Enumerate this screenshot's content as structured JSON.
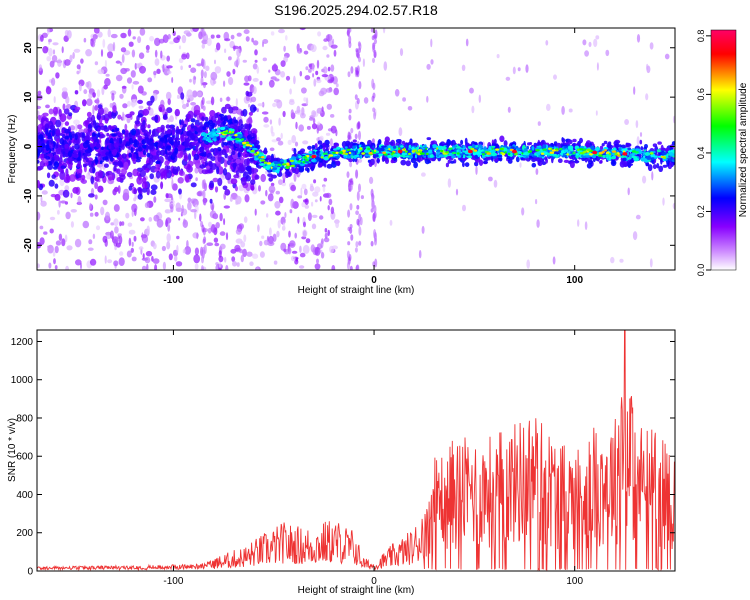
{
  "title": "S196.2025.294.02.57.R18",
  "chart_data": [
    {
      "type": "heatmap",
      "name": "spectrogram",
      "xlabel": "Height of straight line (km)",
      "ylabel": "Frequency (Hz)",
      "xlim": [
        -168,
        150
      ],
      "ylim": [
        -25,
        24
      ],
      "xticks": [
        -100,
        0,
        100
      ],
      "yticks": [
        -20,
        -10,
        0,
        10,
        20
      ],
      "xtick_labels": [
        "-100",
        "0",
        "100"
      ],
      "ytick_labels": [
        "-20",
        "-10",
        "0",
        "10",
        "20"
      ],
      "colorbar": {
        "label": "Normalized spectral amplitude",
        "range": [
          0,
          0.82
        ],
        "ticks": [
          0,
          0.2,
          0.4,
          0.6,
          0.8
        ],
        "tick_labels": [
          "0.0",
          "0.2",
          "0.4",
          "0.6",
          "0.8"
        ],
        "colormap": [
          "#ffffff",
          "#8800ff",
          "#0000ff",
          "#00ffff",
          "#00ff00",
          "#ffff00",
          "#ff0000",
          "#ff0066"
        ]
      },
      "ridge": [
        {
          "x": -168,
          "f": 0
        },
        {
          "x": -120,
          "f": 0
        },
        {
          "x": -82,
          "f": 2
        },
        {
          "x": -75,
          "f": 3
        },
        {
          "x": -68,
          "f": 2
        },
        {
          "x": -60,
          "f": -1
        },
        {
          "x": -52,
          "f": -4
        },
        {
          "x": -45,
          "f": -4
        },
        {
          "x": -30,
          "f": -2
        },
        {
          "x": -10,
          "f": -1
        },
        {
          "x": 0,
          "f": -1
        },
        {
          "x": 50,
          "f": -1
        },
        {
          "x": 100,
          "f": -1
        },
        {
          "x": 150,
          "f": -2
        }
      ]
    },
    {
      "type": "line",
      "name": "snr",
      "xlabel": "Height of straight line (km)",
      "ylabel": "SNR (10 * v/v)",
      "xlim": [
        -168,
        150
      ],
      "ylim": [
        0,
        1260
      ],
      "xticks": [
        -100,
        0,
        100
      ],
      "yticks": [
        0,
        200,
        400,
        600,
        800,
        1000,
        1200
      ],
      "xtick_labels": [
        "-100",
        "0",
        "100"
      ],
      "ytick_labels": [
        "0",
        "200",
        "400",
        "600",
        "800",
        "1000",
        "1200"
      ],
      "color": "#ee3333",
      "envelope": [
        {
          "x": -168,
          "y": 30
        },
        {
          "x": -120,
          "y": 35
        },
        {
          "x": -90,
          "y": 45
        },
        {
          "x": -80,
          "y": 70
        },
        {
          "x": -65,
          "y": 130
        },
        {
          "x": -55,
          "y": 200
        },
        {
          "x": -45,
          "y": 260
        },
        {
          "x": -35,
          "y": 230
        },
        {
          "x": -20,
          "y": 280
        },
        {
          "x": -10,
          "y": 220
        },
        {
          "x": -5,
          "y": 70
        },
        {
          "x": 0,
          "y": 50
        },
        {
          "x": 10,
          "y": 150
        },
        {
          "x": 20,
          "y": 230
        },
        {
          "x": 25,
          "y": 400
        },
        {
          "x": 30,
          "y": 600
        },
        {
          "x": 40,
          "y": 700
        },
        {
          "x": 55,
          "y": 700
        },
        {
          "x": 70,
          "y": 780
        },
        {
          "x": 80,
          "y": 850
        },
        {
          "x": 90,
          "y": 700
        },
        {
          "x": 100,
          "y": 650
        },
        {
          "x": 110,
          "y": 760
        },
        {
          "x": 120,
          "y": 800
        },
        {
          "x": 125,
          "y": 1260
        },
        {
          "x": 130,
          "y": 800
        },
        {
          "x": 140,
          "y": 750
        },
        {
          "x": 150,
          "y": 620
        }
      ]
    }
  ]
}
